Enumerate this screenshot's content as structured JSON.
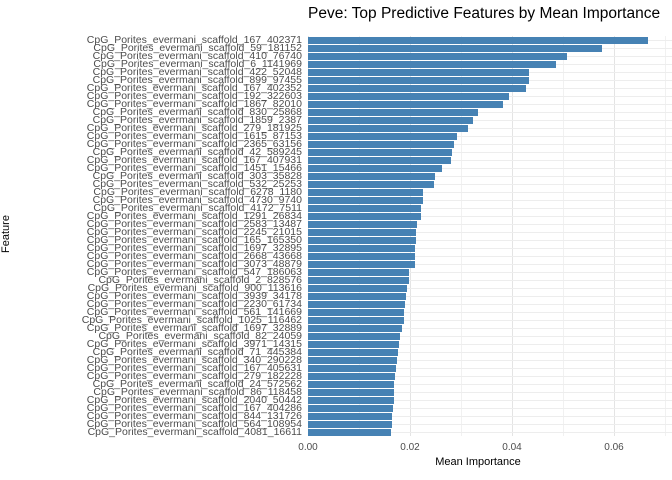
{
  "title": "Peve: Top Predictive Features by Mean Importance",
  "chart_data": {
    "type": "bar",
    "orientation": "horizontal",
    "title": "Peve: Top Predictive Features by Mean Importance",
    "xlabel": "Mean Importance",
    "ylabel": "Feature",
    "xlim": [
      0,
      0.07
    ],
    "x_ticks": [
      0.0,
      0.02,
      0.04,
      0.06
    ],
    "x_tick_labels": [
      "0.00",
      "0.02",
      "0.04",
      "0.06"
    ],
    "grid": true,
    "legend": false,
    "bar_color": "#4682B4",
    "sort": "descending",
    "categories": [
      "CpG_Porites_evermani_scaffold_167_402371",
      "CpG_Porites_evermani_scaffold_59_181152",
      "CpG_Porites_evermani_scaffold_410_76740",
      "CpG_Porites_evermani_scaffold_6_1141969",
      "CpG_Porites_evermani_scaffold_422_52048",
      "CpG_Porites_evermani_scaffold_899_97455",
      "CpG_Porites_evermani_scaffold_167_402352",
      "CpG_Porites_evermani_scaffold_192_322603",
      "CpG_Porites_evermani_scaffold_1867_82010",
      "CpG_Porites_evermani_scaffold_830_25868",
      "CpG_Porites_evermani_scaffold_1859_2387",
      "CpG_Porites_evermani_scaffold_279_181925",
      "CpG_Porites_evermani_scaffold_1615_87153",
      "CpG_Porites_evermani_scaffold_2365_63156",
      "CpG_Porites_evermani_scaffold_42_589245",
      "CpG_Porites_evermani_scaffold_167_407931",
      "CpG_Porites_evermani_scaffold_1451_15466",
      "CpG_Porites_evermani_scaffold_303_35828",
      "CpG_Porites_evermani_scaffold_532_25253",
      "CpG_Porites_evermani_scaffold_6278_1180",
      "CpG_Porites_evermani_scaffold_4730_9740",
      "CpG_Porites_evermani_scaffold_4172_7511",
      "CpG_Porites_evermani_scaffold_1291_26834",
      "CpG_Porites_evermani_scaffold_2583_13487",
      "CpG_Porites_evermani_scaffold_2245_21015",
      "CpG_Porites_evermani_scaffold_165_165350",
      "CpG_Porites_evermani_scaffold_1697_32895",
      "CpG_Porites_evermani_scaffold_2668_43668",
      "CpG_Porites_evermani_scaffold_3073_48879",
      "CpG_Porites_evermani_scaffold_547_186063",
      "CpG_Porites_evermani_scaffold_2_828576",
      "CpG_Porites_evermani_scaffold_900_113616",
      "CpG_Porites_evermani_scaffold_3939_34178",
      "CpG_Porites_evermani_scaffold_2230_61734",
      "CpG_Porites_evermani_scaffold_561_141669",
      "CpG_Porites_evermani_scaffold_1025_116462",
      "CpG_Porites_evermani_scaffold_1697_32889",
      "CpG_Porites_evermani_scaffold_82_24059",
      "CpG_Porites_evermani_scaffold_3971_14315",
      "CpG_Porites_evermani_scaffold_71_445384",
      "CpG_Porites_evermani_scaffold_340_290228",
      "CpG_Porites_evermani_scaffold_167_405631",
      "CpG_Porites_evermani_scaffold_279_182228",
      "CpG_Porites_evermani_scaffold_24_572562",
      "CpG_Porites_evermani_scaffold_86_118458",
      "CpG_Porites_evermani_scaffold_2040_50442",
      "CpG_Porites_evermani_scaffold_167_404286",
      "CpG_Porites_evermani_scaffold_844_131726",
      "CpG_Porites_evermani_scaffold_564_108954",
      "CpG_Porites_evermani_scaffold_4081_16611"
    ],
    "values": [
      0.0667,
      0.0576,
      0.0508,
      0.0486,
      0.0434,
      0.0433,
      0.0427,
      0.0394,
      0.0382,
      0.0333,
      0.0324,
      0.0314,
      0.0292,
      0.0286,
      0.0282,
      0.028,
      0.0262,
      0.0249,
      0.0248,
      0.0225,
      0.0225,
      0.0221,
      0.0221,
      0.0214,
      0.0212,
      0.0211,
      0.021,
      0.021,
      0.0209,
      0.0198,
      0.0198,
      0.0195,
      0.0192,
      0.019,
      0.0188,
      0.0188,
      0.0184,
      0.018,
      0.0178,
      0.0176,
      0.0175,
      0.0172,
      0.0171,
      0.0169,
      0.0168,
      0.0168,
      0.0167,
      0.0165,
      0.0165,
      0.0163
    ]
  },
  "colors": {
    "bar": "#4682B4",
    "grid_major": "#e4e4e4",
    "grid_minor": "#f1f1f1",
    "axis_text": "#4d4d4d",
    "title_text": "#000000",
    "background": "#ffffff"
  }
}
